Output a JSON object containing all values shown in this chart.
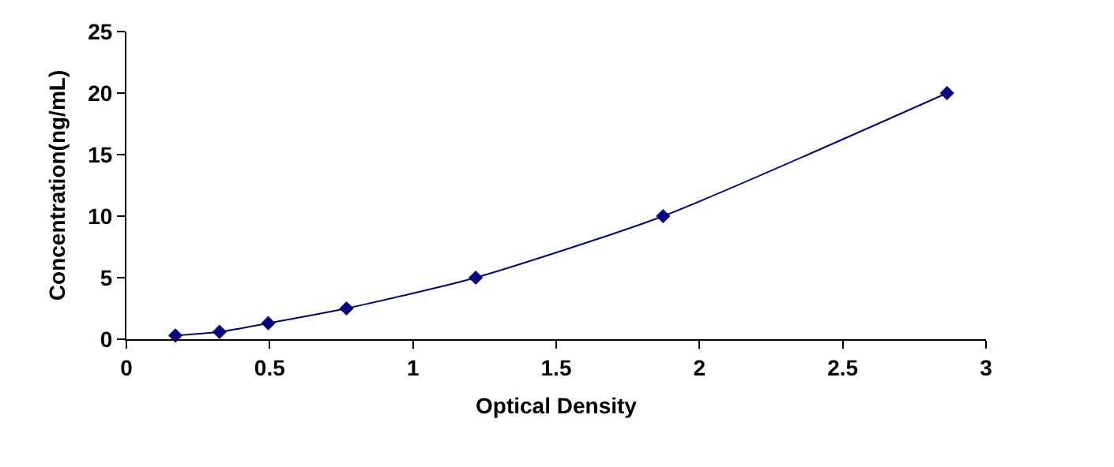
{
  "chart_data": {
    "type": "line",
    "xlabel": "Optical Density",
    "ylabel": "Concentration(ng/mL)",
    "series": [
      {
        "color": "#000080",
        "x": [
          0.171,
          0.325,
          0.495,
          0.768,
          1.219,
          1.873,
          2.864
        ],
        "values": [
          0.3,
          0.6,
          1.3,
          2.5,
          5,
          10,
          20
        ]
      }
    ],
    "xlim": [
      0,
      3
    ],
    "xticks": [
      0,
      0.5,
      1,
      1.5,
      2,
      2.5,
      3
    ],
    "ylim": [
      0,
      25
    ],
    "yticks": [
      0,
      5,
      10,
      15,
      20,
      25
    ],
    "legend": false,
    "marker": "diamond",
    "line_style": "solid"
  }
}
